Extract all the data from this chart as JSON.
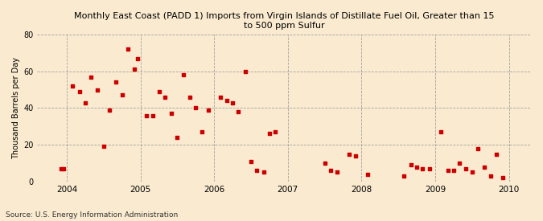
{
  "title": "Monthly East Coast (PADD 1) Imports from Virgin Islands of Distillate Fuel Oil, Greater than 15\nto 500 ppm Sulfur",
  "ylabel": "Thousand Barrels per Day",
  "source": "Source: U.S. Energy Information Administration",
  "background_color": "#faebd0",
  "plot_background_color": "#faebd0",
  "marker_color": "#cc0000",
  "ylim": [
    0,
    80
  ],
  "yticks": [
    0,
    20,
    40,
    60,
    80
  ],
  "xlim_start": 2003.6,
  "xlim_end": 2010.3,
  "xtick_years": [
    2004,
    2005,
    2006,
    2007,
    2008,
    2009,
    2010
  ],
  "data_x": [
    2003.92,
    2003.96,
    2004.08,
    2004.17,
    2004.25,
    2004.33,
    2004.42,
    2004.5,
    2004.58,
    2004.67,
    2004.75,
    2004.83,
    2004.92,
    2004.96,
    2005.08,
    2005.17,
    2005.25,
    2005.33,
    2005.42,
    2005.5,
    2005.58,
    2005.67,
    2005.75,
    2005.83,
    2005.92,
    2006.08,
    2006.17,
    2006.25,
    2006.33,
    2006.42,
    2006.5,
    2006.58,
    2006.67,
    2006.75,
    2006.83,
    2007.5,
    2007.58,
    2007.67,
    2007.83,
    2007.92,
    2008.08,
    2008.58,
    2008.67,
    2008.75,
    2008.83,
    2008.92,
    2009.08,
    2009.17,
    2009.25,
    2009.33,
    2009.42,
    2009.5,
    2009.58,
    2009.67,
    2009.75,
    2009.83,
    2009.92
  ],
  "data_y": [
    7,
    7,
    52,
    49,
    43,
    57,
    50,
    19,
    39,
    54,
    47,
    72,
    61,
    67,
    36,
    36,
    49,
    46,
    37,
    24,
    58,
    46,
    40,
    27,
    39,
    46,
    44,
    43,
    38,
    60,
    11,
    6,
    5,
    26,
    27,
    10,
    6,
    5,
    15,
    14,
    4,
    3,
    9,
    8,
    7,
    7,
    27,
    6,
    6,
    10,
    7,
    5,
    18,
    8,
    3,
    15,
    2
  ]
}
